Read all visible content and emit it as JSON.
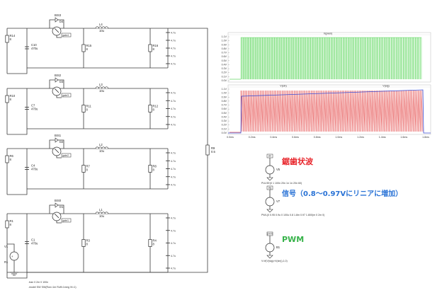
{
  "stages": [
    {
      "transistor": "BIS3",
      "diode": "D4",
      "net": "gate4",
      "inductor": "L4",
      "ind_val": "10u",
      "src_left": "R14",
      "cap": "C10",
      "cap_val": "470u",
      "rs_left": "R15",
      "rs_right": "R16",
      "caps_right": [
        "4.7u",
        "4.7u",
        "4.7u",
        "4.7u",
        "4.7u"
      ]
    },
    {
      "transistor": "BIS2",
      "diode": "D3",
      "net": "gate3",
      "inductor": "L3",
      "ind_val": "10u",
      "src_left": "R10",
      "cap": "C7",
      "cap_val": "470u",
      "rs_left": "R11",
      "rs_right": "R12",
      "caps_right": [
        "4.7u",
        "4.7u",
        "4.7u",
        "4.7u",
        "4.7u"
      ]
    },
    {
      "transistor": "BIS1",
      "diode": "D2",
      "net": "gate2",
      "inductor": "L2",
      "ind_val": "10u",
      "src_left": "R6",
      "cap": "C4",
      "cap_val": "470u",
      "rs_left": "R7",
      "rs_right": "R8",
      "caps_right": [
        "4.7u",
        "4.7u",
        "4.7u",
        "4.7u",
        "4.7u"
      ]
    },
    {
      "transistor": "BIS0",
      "diode": "D1",
      "net": "gate1",
      "inductor": "L1",
      "ind_val": "10u",
      "src_left": "R1",
      "cap": "C1",
      "cap_val": "470u",
      "rs_left": "R3",
      "rs_right": "R4",
      "caps_right": [
        "4.7u",
        "4.7u",
        "4.7u",
        "4.7u",
        "4.7u"
      ]
    }
  ],
  "supply": {
    "name": "V1",
    "label": "R1"
  },
  "load": {
    "name": "R9",
    "value": "0.5"
  },
  "spice": {
    "line1": ".tran 0 2m 0 100n",
    "line2": ".model SW SW(Ron=1m Roff=1meg Vt=1)"
  },
  "sources": [
    {
      "title": "鋸歯状波",
      "name": "V5",
      "node": "sin",
      "spec": "PULSE(0 1 100n 20n 1n 1n 20n 60)"
    },
    {
      "title": "信号（0.8〜0.97Vにリニアに増加）",
      "name": "V7",
      "node": "sig",
      "spec": "PWL(0 0.95 0.9u 0 100u 0.8 1.8m 0.97 1.800)m 0 2m 0)"
    },
    {
      "title": "PWM",
      "name": "B1",
      "node": "pwm",
      "spec": "V=if(V(sig)>V(sin)),1,0)"
    }
  ],
  "colors": {
    "green_trace": "#3fcf3f",
    "red_trace": "#e23b3b",
    "blue_trace": "#3d4fd6"
  },
  "plot": {
    "top_yticks": [
      "1.1V",
      "1.0V",
      "0.9V",
      "0.8V",
      "0.7V",
      "0.6V",
      "0.5V",
      "0.4V",
      "0.3V",
      "0.2V",
      "0.1V",
      "0.0V"
    ],
    "bottom_yticks": [
      "1.1V",
      "1.0V",
      "0.9V",
      "0.8V",
      "0.7V",
      "0.6V",
      "0.5V",
      "0.4V",
      "0.3V",
      "0.2V",
      "0.1V",
      "0.0V"
    ],
    "xticks": [
      "0.0ms",
      "0.2ms",
      "0.4ms",
      "0.6ms",
      "0.8ms",
      "1.0ms",
      "1.2ms",
      "1.4ms",
      "1.6ms",
      "1.8ms"
    ],
    "top_legend": "V(pwm)",
    "bottom_legend_a": "V(sin)",
    "bottom_legend_b": "V(sig)"
  }
}
